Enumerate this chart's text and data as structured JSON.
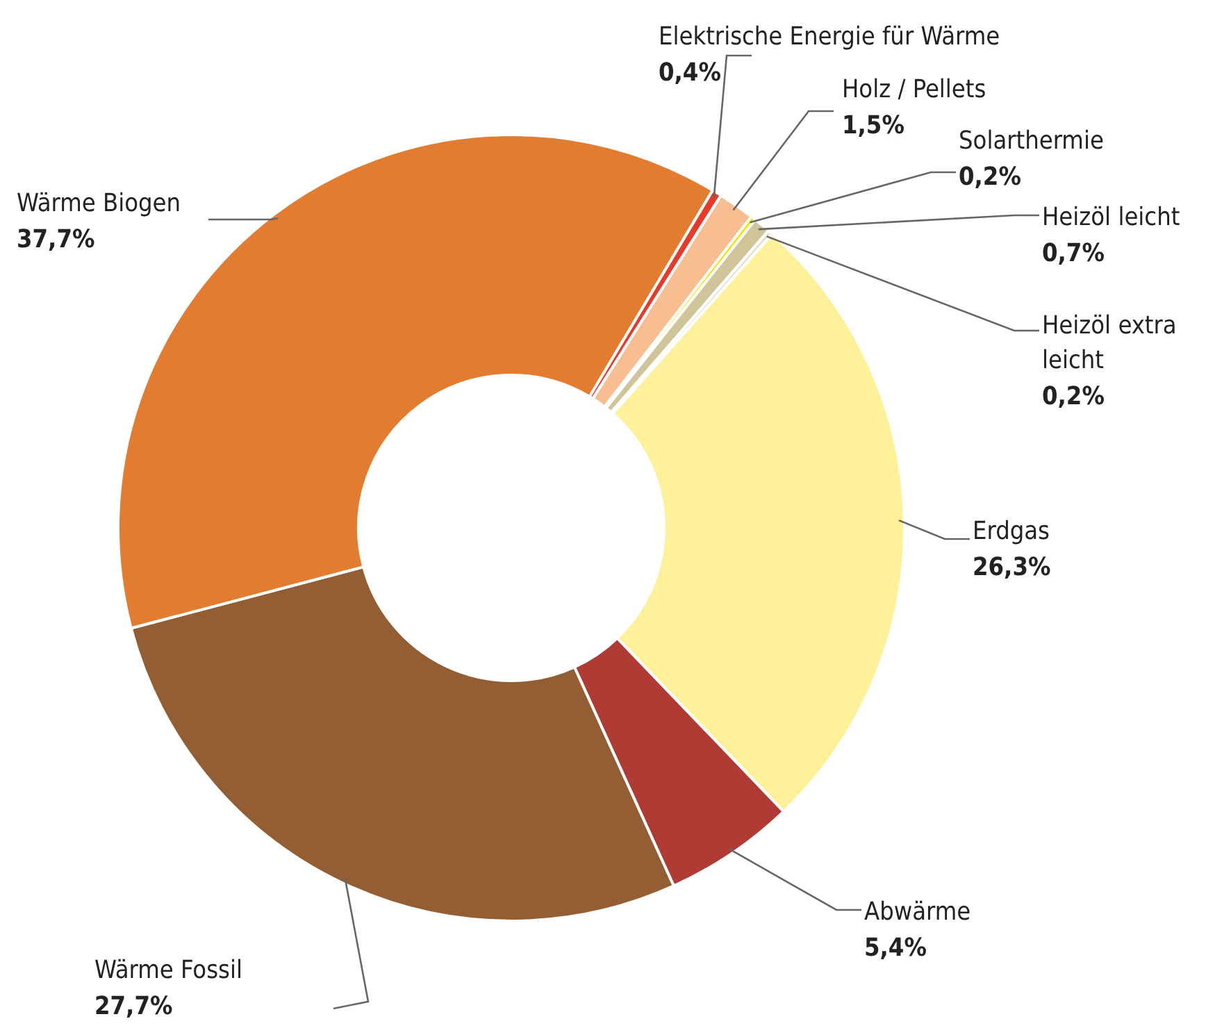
{
  "chart_data": {
    "type": "donut",
    "categories": [
      "Elektrische Energie für Wärme",
      "Holz / Pellets",
      "Solarthermie",
      "Heizöl leicht",
      "Heizöl extra leicht",
      "Erdgas",
      "Abwärme",
      "Wärme Fossil",
      "Wärme Biogen"
    ],
    "values": [
      0.4,
      1.5,
      0.2,
      0.7,
      0.2,
      26.3,
      5.4,
      27.7,
      37.7
    ],
    "value_labels": [
      "0,4%",
      "1,5%",
      "0,2%",
      "0,7%",
      "0,2%",
      "26,3%",
      "5,4%",
      "27,7%",
      "37,7%"
    ],
    "colors": [
      "#e8392b",
      "#f8bd90",
      "#f2e200",
      "#cfc49a",
      "#e3ded0",
      "#fff19a",
      "#b03a34",
      "#935e33",
      "#e27c30"
    ]
  }
}
